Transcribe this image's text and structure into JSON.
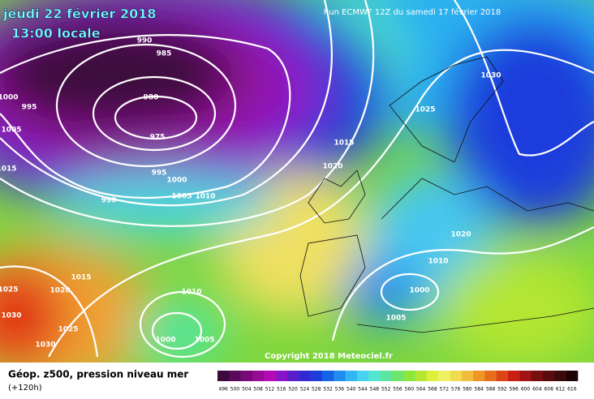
{
  "header": {
    "date": "jeudi 22 février 2018",
    "time": "13:00 locale",
    "run": "Run ECMWF 12Z du samedi 17 février 2018"
  },
  "copyright": "Copyright 2018 Meteociel.fr",
  "footer": {
    "title": "Géop. z500, pression niveau mer",
    "lead": "(+120h)"
  },
  "isobar_labels": [
    "990",
    "985",
    "980",
    "975",
    "995",
    "1000",
    "1005",
    "1015",
    "995",
    "1000",
    "1005",
    "1010",
    "990",
    "1015",
    "1020",
    "1025",
    "1030",
    "1020",
    "1010",
    "1000",
    "1005",
    "1015",
    "1020",
    "1025",
    "1030",
    "1025",
    "1030",
    "1010",
    "1000",
    "1005"
  ],
  "colorbar": {
    "labels": [
      "496",
      "500",
      "504",
      "508",
      "512",
      "516",
      "520",
      "524",
      "528",
      "532",
      "536",
      "540",
      "544",
      "548",
      "552",
      "556",
      "560",
      "564",
      "568",
      "572",
      "576",
      "580",
      "584",
      "588",
      "592",
      "596",
      "600",
      "604",
      "608",
      "612",
      "616"
    ],
    "colors": [
      "#3c0a3c",
      "#5a0a5a",
      "#780a78",
      "#960a96",
      "#b40ab4",
      "#8c14c8",
      "#5a1ec8",
      "#3228d2",
      "#1e3cdc",
      "#1464e6",
      "#1e8cf0",
      "#32b4f5",
      "#46d2f0",
      "#50e6d2",
      "#5ae6a0",
      "#6ee66e",
      "#8ce63c",
      "#b4e632",
      "#dcf03c",
      "#f0f064",
      "#f0dc50",
      "#f0be3c",
      "#f09628",
      "#e66e1e",
      "#dc4614",
      "#c81e14",
      "#a01414",
      "#78100f",
      "#5a0c0c",
      "#3c0a0a",
      "#1e0505"
    ]
  }
}
